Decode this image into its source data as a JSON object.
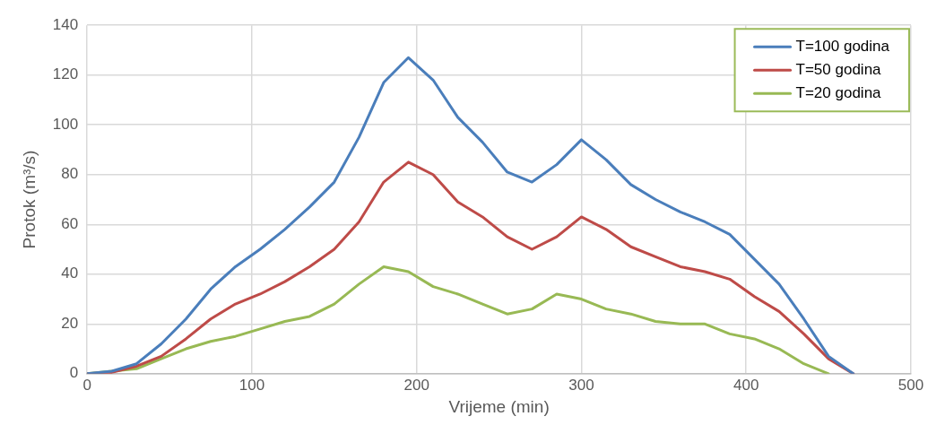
{
  "chart_data": {
    "type": "line",
    "xlabel": "Vrijeme (min)",
    "ylabel": "Protok (m³/s)",
    "x": [
      0,
      15,
      30,
      45,
      60,
      75,
      90,
      105,
      120,
      135,
      150,
      165,
      180,
      195,
      210,
      225,
      240,
      255,
      270,
      285,
      300,
      315,
      330,
      345,
      360,
      375,
      390,
      405,
      420,
      435,
      450,
      465
    ],
    "series": [
      {
        "name": "T=100 godina",
        "color": "#4a7ebb",
        "values": [
          0,
          1,
          4,
          12,
          22,
          34,
          43,
          50,
          58,
          67,
          77,
          95,
          117,
          127,
          118,
          103,
          93,
          81,
          77,
          84,
          94,
          86,
          76,
          70,
          65,
          61,
          56,
          46,
          36,
          22,
          7,
          0
        ]
      },
      {
        "name": "T=50 godina",
        "color": "#be4b48",
        "values": [
          0,
          0.5,
          3,
          7,
          14,
          22,
          28,
          32,
          37,
          43,
          50,
          61,
          77,
          85,
          80,
          69,
          63,
          55,
          50,
          55,
          63,
          58,
          51,
          47,
          43,
          41,
          38,
          31,
          25,
          16,
          6,
          0
        ]
      },
      {
        "name": "T=20 godina",
        "color": "#98b954",
        "values": [
          0,
          1,
          2,
          6,
          10,
          13,
          15,
          18,
          21,
          23,
          28,
          36,
          43,
          41,
          35,
          32,
          28,
          24,
          26,
          32,
          30,
          26,
          24,
          21,
          20,
          20,
          16,
          14,
          10,
          4,
          0,
          null
        ]
      }
    ],
    "xlim": [
      0,
      500
    ],
    "xticks": [
      0,
      100,
      200,
      300,
      400,
      500
    ],
    "ylim": [
      0,
      140
    ],
    "yticks": [
      0,
      20,
      40,
      60,
      80,
      100,
      120,
      140
    ],
    "grid": true,
    "legend": "top right",
    "marker": "none",
    "line_style": "solid"
  }
}
